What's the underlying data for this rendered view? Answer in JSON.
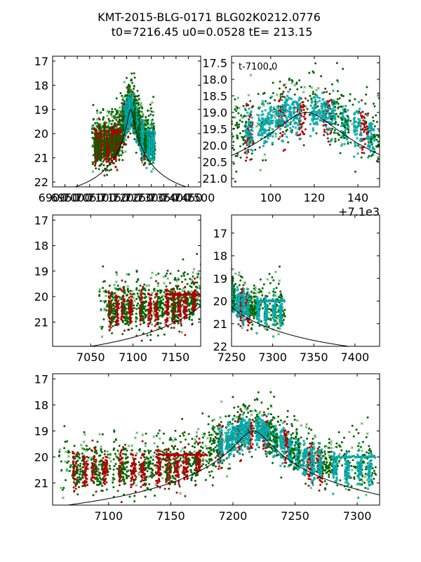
{
  "title": {
    "line1": "KMT-2015-BLG-0171 BLG02K0212.0776",
    "line2": "t0=7216.45 u0=0.0528 tE= 213.15"
  },
  "chart_data": {
    "type": "scatter",
    "model": {
      "t0": 7216.45,
      "u0": 0.0528,
      "tE": 213.15,
      "mag_base": 22.6,
      "mag_peak": 19.0
    },
    "series": [
      {
        "name": "dark green (circles)",
        "color": "#006400",
        "marker": "circle"
      },
      {
        "name": "dark red (circles)",
        "color": "#b00000",
        "marker": "circle"
      },
      {
        "name": "cyan (circles)",
        "color": "#00c8c8",
        "marker": "circle"
      },
      {
        "name": "green (crosses)",
        "color": "#228b22",
        "marker": "x"
      }
    ],
    "panels": [
      {
        "id": "panel-1",
        "xlim": [
          6900,
          7500
        ],
        "ylim": [
          22.2,
          16.8
        ],
        "xticks": [
          6900,
          6950,
          7000,
          7050,
          7100,
          7150,
          7200,
          7250,
          7300,
          7350,
          7400,
          7450,
          7500
        ],
        "xticklabels": [
          "6900",
          "6950",
          "7000",
          "7050",
          "7100",
          "7150",
          "7200",
          "7250",
          "7300",
          "7350",
          "7400",
          "7450",
          "7500"
        ],
        "yticks": [
          17,
          18,
          19,
          20,
          21,
          22
        ],
        "yticklabels": [
          "17",
          "18",
          "19",
          "20",
          "21",
          "22"
        ],
        "annotation": "",
        "offset_text": ""
      },
      {
        "id": "panel-2",
        "xlim": [
          7182,
          7250
        ],
        "ylim": [
          21.25,
          17.3
        ],
        "xticks": [
          7200,
          7220,
          7240
        ],
        "xticklabels": [
          "100",
          "120",
          "140"
        ],
        "yticks": [
          17.5,
          18.0,
          18.5,
          19.0,
          19.5,
          20.0,
          20.5,
          21.0
        ],
        "yticklabels": [
          "17.5",
          "18.0",
          "18.5",
          "19.0",
          "19.5",
          "20.0",
          "20.5",
          "21.0"
        ],
        "annotation": "t-7100.0",
        "offset_text": "+7.1e3"
      },
      {
        "id": "panel-3",
        "xlim": [
          7005,
          7180
        ],
        "ylim": [
          21.95,
          16.8
        ],
        "xticks": [
          7050,
          7100,
          7150
        ],
        "xticklabels": [
          "7050",
          "7100",
          "7150"
        ],
        "yticks": [
          17,
          18,
          19,
          20,
          21
        ],
        "yticklabels": [
          "17",
          "18",
          "19",
          "20",
          "21"
        ],
        "annotation": "",
        "offset_text": ""
      },
      {
        "id": "panel-4",
        "xlim": [
          7250,
          7430
        ],
        "ylim": [
          22.0,
          16.2
        ],
        "xticks": [
          7250,
          7300,
          7350,
          7400
        ],
        "xticklabels": [
          "7250",
          "7300",
          "7350",
          "7400"
        ],
        "yticks": [
          17,
          18,
          19,
          20,
          21,
          22
        ],
        "yticklabels": [
          "17",
          "18",
          "19",
          "20",
          "21",
          "22"
        ],
        "annotation": "",
        "offset_text": ""
      },
      {
        "id": "panel-5",
        "xlim": [
          7055,
          7318
        ],
        "ylim": [
          21.85,
          16.8
        ],
        "xticks": [
          7100,
          7150,
          7200,
          7250,
          7300
        ],
        "xticklabels": [
          "7100",
          "7150",
          "7200",
          "7250",
          "7300"
        ],
        "yticks": [
          17,
          18,
          19,
          20,
          21
        ],
        "yticklabels": [
          "17",
          "18",
          "19",
          "20",
          "21"
        ],
        "annotation": "",
        "offset_text": ""
      }
    ]
  }
}
